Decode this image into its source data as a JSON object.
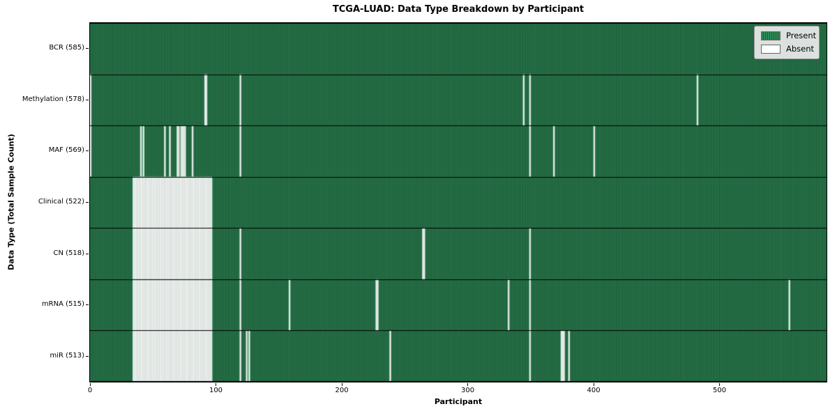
{
  "chart_data": {
    "type": "heatmap",
    "title": "TCGA-LUAD: Data Type Breakdown by Participant",
    "xlabel": "Participant",
    "ylabel": "Data Type (Total Sample Count)",
    "n_participants": 585,
    "x_range": [
      0,
      585
    ],
    "x_ticks": [
      0,
      100,
      200,
      300,
      400,
      500
    ],
    "grid": false,
    "legend_position": "upper right",
    "colors": {
      "present": "#2e8b57",
      "present_edge": "#16402a",
      "absent": "#ffffff",
      "absent_edge": "#c4c4c4",
      "row_border": "#000000",
      "figure_bg": "#ffffff",
      "legend_bg": "#ebebeb"
    },
    "legend": [
      {
        "label": "Present",
        "color": "#2e8b57",
        "striped": true
      },
      {
        "label": "Absent",
        "color": "#ffffff",
        "striped": false
      }
    ],
    "rows": [
      {
        "label": "BCR (585)",
        "name": "BCR",
        "count": 585,
        "absent": [],
        "absent_ranges": []
      },
      {
        "label": "Methylation (578)",
        "name": "Methylation",
        "count": 578,
        "absent": [
          0,
          91,
          92,
          119,
          344,
          349,
          482
        ],
        "absent_ranges": []
      },
      {
        "label": "MAF (569)",
        "name": "MAF",
        "count": 569,
        "absent": [
          0,
          40,
          42,
          59,
          63,
          69,
          70,
          72,
          73,
          74,
          75,
          81,
          119,
          349,
          368,
          400
        ],
        "absent_ranges": []
      },
      {
        "label": "Clinical (522)",
        "name": "Clinical",
        "count": 522,
        "absent": [],
        "absent_ranges": [
          [
            34,
            96
          ]
        ]
      },
      {
        "label": "CN (518)",
        "name": "CN",
        "count": 518,
        "absent": [
          119,
          264,
          265,
          349
        ],
        "absent_ranges": [
          [
            34,
            96
          ]
        ]
      },
      {
        "label": "mRNA (515)",
        "name": "mRNA",
        "count": 515,
        "absent": [
          119,
          158,
          227,
          228,
          332,
          349,
          555
        ],
        "absent_ranges": [
          [
            34,
            96
          ]
        ]
      },
      {
        "label": "miR (513)",
        "name": "miR",
        "count": 513,
        "absent": [
          119,
          124,
          126,
          238,
          349,
          374,
          375,
          376,
          380
        ],
        "absent_ranges": [
          [
            34,
            96
          ]
        ]
      }
    ]
  }
}
